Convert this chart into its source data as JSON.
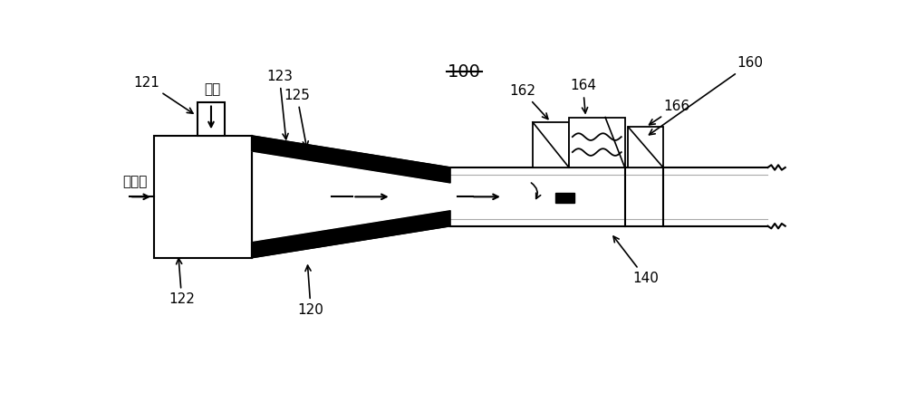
{
  "bg_color": "#ffffff",
  "line_color": "#000000",
  "gray_color": "#aaaaaa",
  "figsize": [
    10.0,
    4.54
  ],
  "dpi": 100,
  "gas_text": "天然气",
  "air_text": "空气",
  "font_size": 11
}
